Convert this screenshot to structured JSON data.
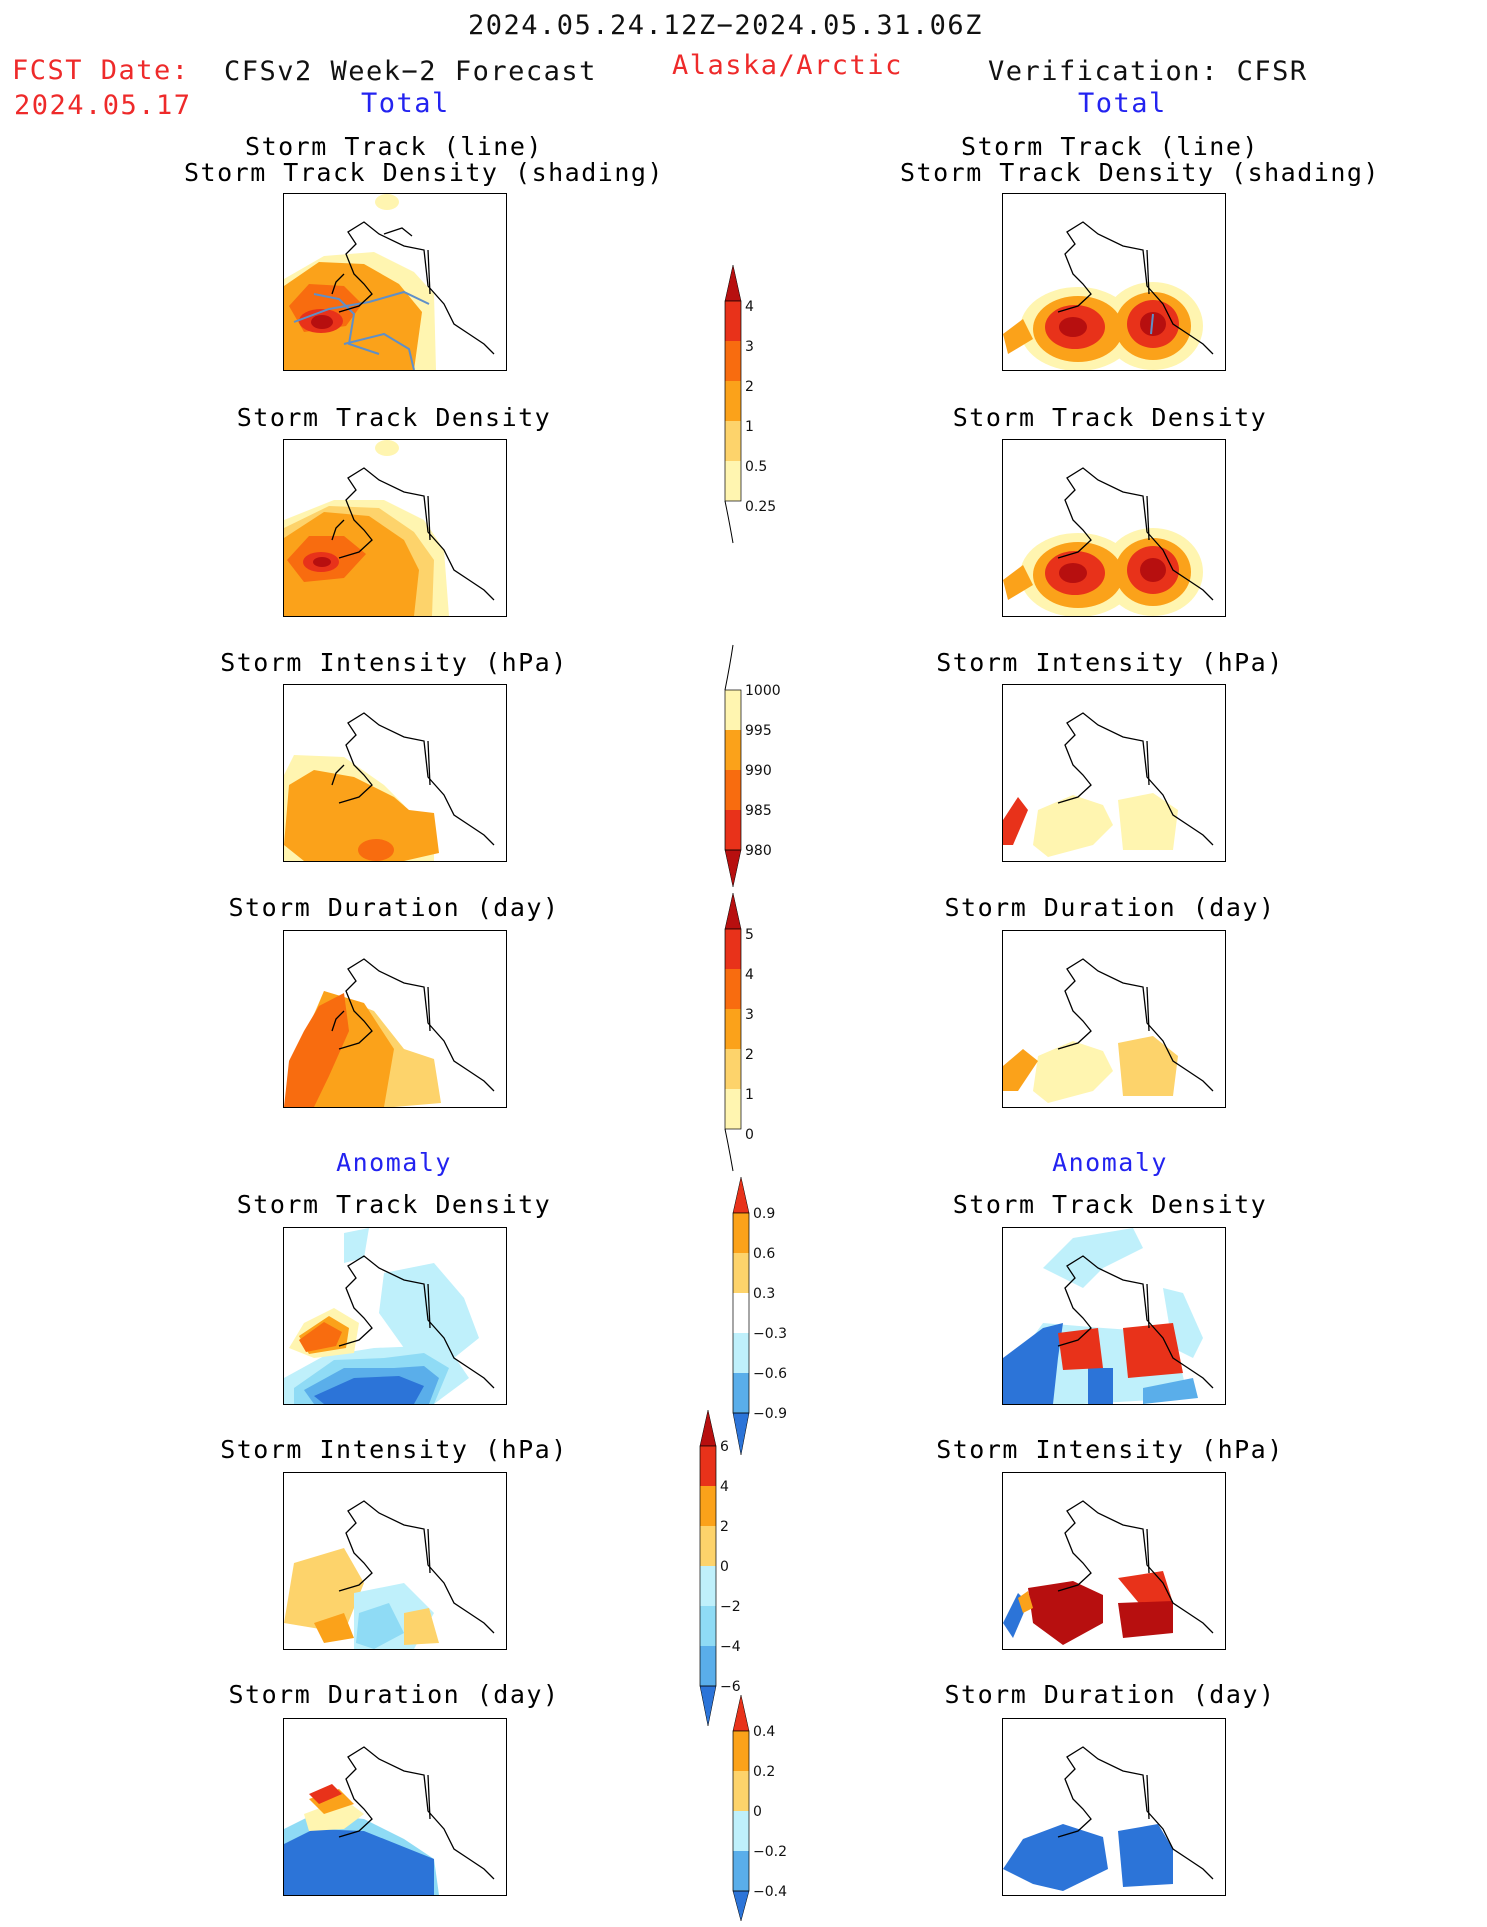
{
  "header": {
    "date_range": "2024.05.24.12Z−2024.05.31.06Z",
    "fcst_label": "FCST Date:",
    "fcst_date": "2024.05.17",
    "forecast_title": "CFSv2 Week−2 Forecast",
    "region": "Alaska/Arctic",
    "verification_title": "Verification: CFSR"
  },
  "sections": {
    "total": "Total",
    "anomaly": "Anomaly"
  },
  "panels": {
    "track_line": "Storm Track (line)",
    "track_shading": "Storm Track Density (shading)",
    "density": "Storm Track Density",
    "intensity": "Storm Intensity (hPa)",
    "duration": "Storm Duration (day)"
  },
  "colorbars": {
    "density_total": [
      "4",
      "3",
      "2",
      "1",
      "0.5",
      "0.25"
    ],
    "intensity_total": [
      "1000",
      "995",
      "990",
      "985",
      "980"
    ],
    "duration_total": [
      "5",
      "4",
      "3",
      "2",
      "1",
      "0"
    ],
    "density_anom": [
      "0.9",
      "0.6",
      "0.3",
      "−0.3",
      "−0.6",
      "−0.9"
    ],
    "intensity_anom": [
      "6",
      "4",
      "2",
      "0",
      "−2",
      "−4",
      "−6"
    ],
    "duration_anom": [
      "0.4",
      "0.2",
      "0",
      "−0.2",
      "−0.4"
    ]
  },
  "colors": {
    "c1": "#fff5b0",
    "c2": "#fdd36b",
    "c3": "#fba21a",
    "c4": "#f86c0f",
    "c5": "#e8321a",
    "c6": "#b70f0f",
    "b1": "#bff0fb",
    "b2": "#8fdbf5",
    "b3": "#5aaeea",
    "b4": "#2c74d8",
    "b5": "#1e56c8",
    "track_line": "#5f8fc8"
  }
}
